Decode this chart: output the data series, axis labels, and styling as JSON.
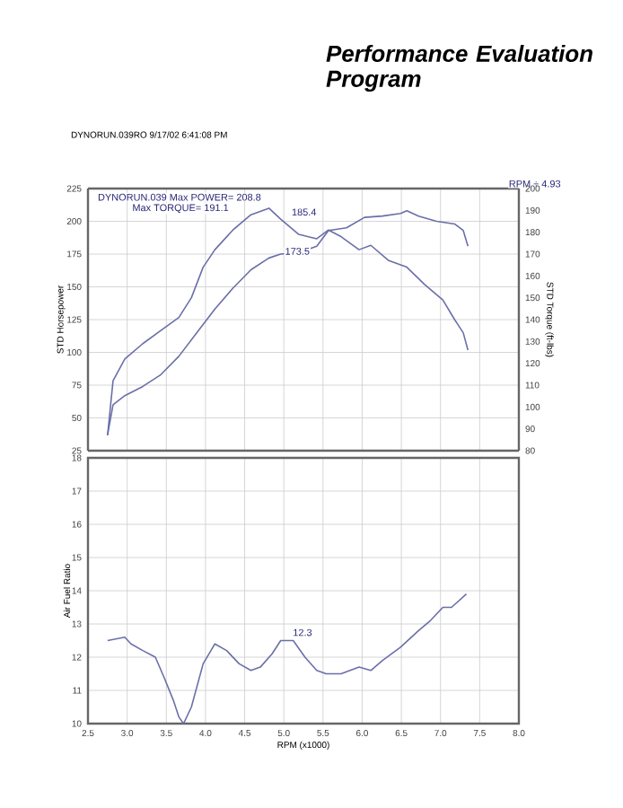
{
  "chart_data": [
    {
      "type": "line",
      "title": "Performance Evaluation Program",
      "subtitle": "DYNORUN.039RO  9/17/02 6:41:08 PM",
      "ylabel": "STD Horsepower",
      "y2label": "STD Torque (ft-lbs)",
      "annotations": [
        "DYNORUN.039  Max POWER= 208.8",
        "Max TORQUE= 191.1",
        "RPM ÷ 4.93",
        "185.4",
        {
          "text": "173.5",
          "x": 5.0,
          "y": 173.5
        }
      ],
      "xlim": [
        2.5,
        8.0
      ],
      "xticks": [
        2.5,
        3,
        3.5,
        4,
        4.5,
        5,
        5.5,
        6,
        6.5,
        7,
        7.5,
        8
      ],
      "ylim": [
        25,
        225
      ],
      "yticks": [
        25,
        50,
        75,
        100,
        125,
        150,
        175,
        200,
        225
      ],
      "y2lim": [
        80,
        200
      ],
      "y2ticks": [
        80,
        90,
        100,
        110,
        120,
        130,
        140,
        150,
        160,
        170,
        180,
        190,
        200
      ],
      "grid": true,
      "tick_labels": "y",
      "marker": "none",
      "line_style": "solid",
      "series": [
        {
          "color": "#6a6fa8",
          "x": [
            2.75,
            2.82,
            2.97,
            3.2,
            3.43,
            3.66,
            3.89,
            4.12,
            4.35,
            4.58,
            4.81,
            4.96,
            5.19,
            5.42,
            5.57,
            5.8,
            6.03,
            6.26,
            6.49,
            6.57,
            6.72,
            6.95,
            7.18,
            7.29,
            7.35
          ],
          "values": [
            37,
            60,
            67,
            74,
            83,
            97,
            115,
            133,
            149,
            163,
            172,
            175,
            176,
            181,
            193,
            195,
            203,
            204,
            206,
            208,
            204,
            200,
            198,
            193,
            181
          ]
        },
        {
          "color": "#6a6fa8",
          "axis": "y2",
          "x": [
            2.75,
            2.82,
            2.97,
            3.2,
            3.43,
            3.66,
            3.82,
            3.97,
            4.12,
            4.35,
            4.58,
            4.81,
            4.96,
            5.19,
            5.42,
            5.57,
            5.73,
            5.96,
            6.11,
            6.34,
            6.57,
            6.8,
            7.03,
            7.18,
            7.29,
            7.35
          ],
          "values": [
            87,
            112,
            122,
            129,
            135,
            141,
            150,
            164,
            172,
            181,
            188,
            191,
            186,
            179,
            177,
            181,
            178,
            172,
            174,
            167,
            164,
            156,
            149,
            140,
            134,
            126
          ]
        }
      ]
    },
    {
      "type": "line",
      "xlabel": "RPM (x1000)",
      "ylabel": "Air Fuel Ratio",
      "annotations": [
        {
          "text": "12.3",
          "x": 5.1,
          "y": 12.6
        }
      ],
      "xlim": [
        2.5,
        8.0
      ],
      "xticks": [
        2.5,
        {
          "value": 3,
          "label": "3.0"
        },
        3.5,
        {
          "value": 4,
          "label": "4.0"
        },
        4.5,
        {
          "value": 5,
          "label": "5.0"
        },
        5.5,
        {
          "value": 6,
          "label": "6.0"
        },
        6.5,
        {
          "value": 7,
          "label": "7.0"
        },
        7.5,
        {
          "value": 8,
          "label": "8.0"
        }
      ],
      "ylim": [
        10,
        18
      ],
      "yticks": [
        10,
        11,
        12,
        13,
        14,
        15,
        16,
        17,
        18
      ],
      "grid": true,
      "marker": "none",
      "line_style": "solid",
      "series": [
        {
          "color": "#6a6fa8",
          "x": [
            2.75,
            2.97,
            3.05,
            3.2,
            3.36,
            3.47,
            3.59,
            3.66,
            3.72,
            3.82,
            3.97,
            4.12,
            4.27,
            4.43,
            4.58,
            4.7,
            4.85,
            4.96,
            5.12,
            5.27,
            5.42,
            5.54,
            5.73,
            5.96,
            6.11,
            6.26,
            6.49,
            6.72,
            6.87,
            7.03,
            7.14,
            7.33
          ],
          "values": [
            12.5,
            12.6,
            12.4,
            12.2,
            12.0,
            11.4,
            10.7,
            10.2,
            10.0,
            10.5,
            11.8,
            12.4,
            12.2,
            11.8,
            11.6,
            11.7,
            12.1,
            12.5,
            12.5,
            12.0,
            11.6,
            11.5,
            11.5,
            11.7,
            11.6,
            11.9,
            12.3,
            12.8,
            13.1,
            13.5,
            13.5,
            13.9
          ]
        }
      ]
    }
  ]
}
